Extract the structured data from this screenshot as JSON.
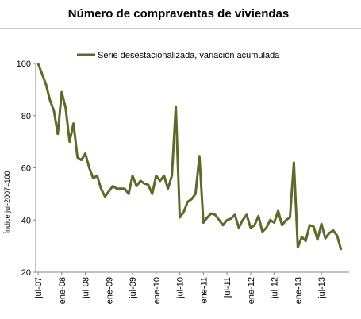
{
  "chart_data": {
    "type": "line",
    "title": "Número de compraventas de viviendas",
    "y_label": "Índice jul-2007=100",
    "categories": [
      "jul-07",
      null,
      null,
      null,
      null,
      null,
      "ene-08",
      null,
      null,
      null,
      null,
      null,
      "jul-08",
      null,
      null,
      null,
      null,
      null,
      "ene-09",
      null,
      null,
      null,
      null,
      null,
      "jul-09",
      null,
      null,
      null,
      null,
      null,
      "ene-10",
      null,
      null,
      null,
      null,
      null,
      "jul-10",
      null,
      null,
      null,
      null,
      null,
      "ene-11",
      null,
      null,
      null,
      null,
      null,
      "jul-11",
      null,
      null,
      null,
      null,
      null,
      "ene-12",
      null,
      null,
      null,
      null,
      null,
      "jul-12",
      null,
      null,
      null,
      null,
      null,
      "ene-13",
      null,
      null,
      null,
      null,
      null,
      "jul-13",
      null,
      null,
      null,
      null,
      null
    ],
    "series": [
      {
        "name": "Serie desestacionalizada, variación acumulada",
        "color": "#5a6b2a",
        "values": [
          100,
          96,
          92,
          86,
          82,
          73,
          89,
          83,
          70,
          77,
          64,
          63,
          65.5,
          60,
          56,
          57,
          52,
          49,
          51,
          53,
          52,
          52,
          52,
          50,
          57,
          53,
          55,
          54,
          53.5,
          50,
          57,
          55,
          57,
          52,
          57,
          83.5,
          41,
          43,
          47,
          48,
          50,
          64.5,
          39,
          41,
          42.5,
          42,
          40,
          38,
          40,
          40.5,
          42,
          37,
          40,
          42,
          37,
          38,
          41.5,
          35.5,
          37,
          40,
          39,
          43.5,
          38,
          40,
          41,
          62,
          29.5,
          33.5,
          32,
          38,
          37.5,
          32.5,
          38.5,
          33,
          35,
          36,
          34,
          28.5
        ]
      }
    ],
    "ylim": [
      20,
      100
    ],
    "yticks": [
      20,
      40,
      60,
      80,
      100
    ],
    "grid": false
  }
}
